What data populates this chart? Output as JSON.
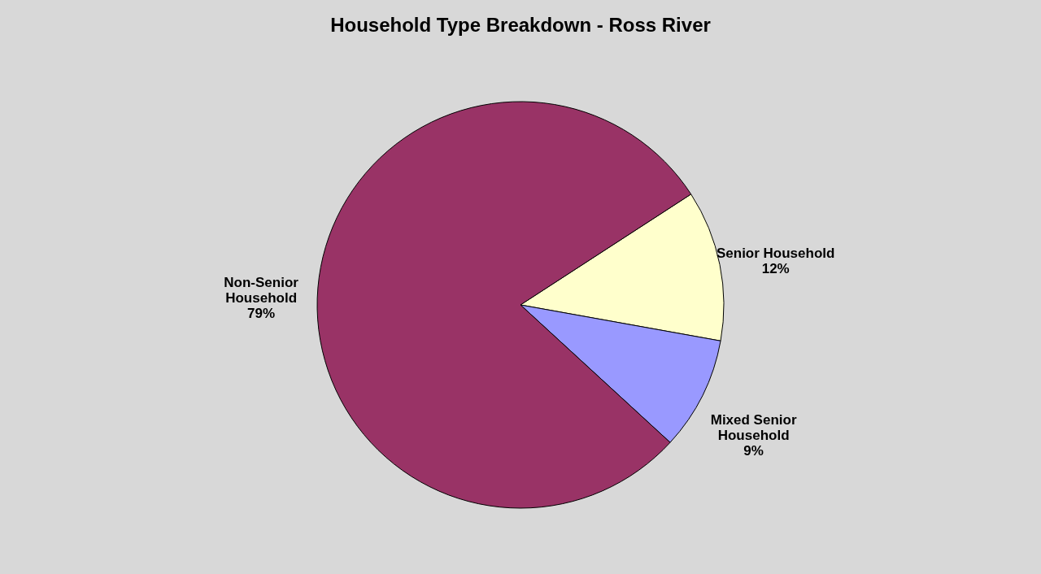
{
  "chart_data": {
    "type": "pie",
    "title": "Household Type Breakdown - Ross River",
    "categories": [
      "Senior Household",
      "Mixed Senior Household",
      "Non-Senior Household"
    ],
    "values": [
      12,
      9,
      79
    ],
    "colors": [
      "#ffffcc",
      "#9999ff",
      "#993366"
    ],
    "value_labels": [
      "12%",
      "9%",
      "79%"
    ],
    "legend": false
  }
}
